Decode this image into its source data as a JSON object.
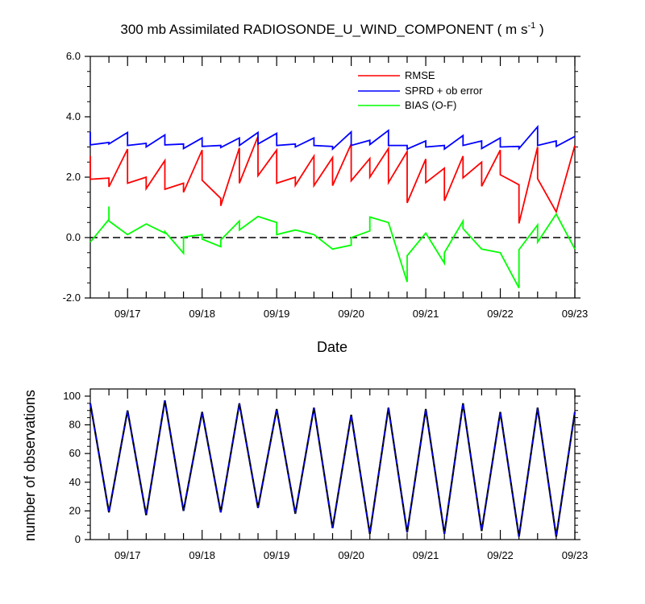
{
  "chart_data": [
    {
      "type": "line",
      "title": "300 mb Assimilated RADIOSONDE_U_WIND_COMPONENT ( m s",
      "title_unit_exp": "-1",
      "title_suffix": " )",
      "xlabel": "Date",
      "xticks": [
        "09/17",
        "09/18",
        "09/19",
        "09/20",
        "09/21",
        "09/22",
        "09/23"
      ],
      "xlim_hours": [
        -12,
        144
      ],
      "ylim": [
        -2,
        6
      ],
      "yticks": [
        "-2.0",
        "0.0",
        "2.0",
        "4.0",
        "6.0"
      ],
      "reference_line": {
        "y": 0,
        "style": "dashed",
        "color": "#000000"
      },
      "legend_position": "top-right",
      "series": [
        {
          "name": "RMSE",
          "color": "#ff0000",
          "points": [
            [
              -12,
              2.7
            ],
            [
              -12,
              1.93
            ],
            [
              -6,
              1.97
            ],
            [
              -6,
              1.68
            ],
            [
              0,
              2.93
            ],
            [
              0,
              1.8
            ],
            [
              6,
              2.0
            ],
            [
              6,
              1.62
            ],
            [
              12,
              2.55
            ],
            [
              12,
              1.6
            ],
            [
              18,
              1.8
            ],
            [
              18,
              1.5
            ],
            [
              24,
              2.9
            ],
            [
              24,
              1.9
            ],
            [
              30,
              1.3
            ],
            [
              30,
              1.05
            ],
            [
              36,
              2.97
            ],
            [
              36,
              1.8
            ],
            [
              42,
              3.35
            ],
            [
              42,
              2.05
            ],
            [
              48,
              2.9
            ],
            [
              48,
              1.8
            ],
            [
              54,
              2.0
            ],
            [
              54,
              1.73
            ],
            [
              60,
              2.7
            ],
            [
              60,
              1.72
            ],
            [
              66,
              2.65
            ],
            [
              66,
              1.72
            ],
            [
              72,
              3.1
            ],
            [
              72,
              1.88
            ],
            [
              78,
              2.62
            ],
            [
              78,
              2.0
            ],
            [
              84,
              2.95
            ],
            [
              84,
              1.82
            ],
            [
              90,
              2.85
            ],
            [
              90,
              1.15
            ],
            [
              96,
              2.6
            ],
            [
              96,
              1.82
            ],
            [
              102,
              2.3
            ],
            [
              102,
              1.22
            ],
            [
              108,
              2.7
            ],
            [
              108,
              1.98
            ],
            [
              114,
              2.5
            ],
            [
              114,
              1.7
            ],
            [
              120,
              2.9
            ],
            [
              120,
              2.08
            ],
            [
              126,
              1.75
            ],
            [
              126,
              0.47
            ],
            [
              132,
              3.0
            ],
            [
              132,
              1.95
            ],
            [
              138,
              0.85
            ],
            [
              144,
              3.05
            ]
          ]
        },
        {
          "name": "SPRD + ob error",
          "color": "#0000ff",
          "points": [
            [
              -12,
              3.5
            ],
            [
              -12,
              3.07
            ],
            [
              -6,
              3.15
            ],
            [
              -6,
              3.1
            ],
            [
              0,
              3.48
            ],
            [
              0,
              3.05
            ],
            [
              6,
              3.12
            ],
            [
              6,
              3.0
            ],
            [
              12,
              3.4
            ],
            [
              12,
              3.07
            ],
            [
              18,
              3.1
            ],
            [
              18,
              2.95
            ],
            [
              24,
              3.3
            ],
            [
              24,
              3.02
            ],
            [
              30,
              3.05
            ],
            [
              30,
              2.98
            ],
            [
              36,
              3.3
            ],
            [
              36,
              3.05
            ],
            [
              42,
              3.48
            ],
            [
              42,
              3.1
            ],
            [
              48,
              3.45
            ],
            [
              48,
              3.05
            ],
            [
              54,
              3.1
            ],
            [
              54,
              3.0
            ],
            [
              60,
              3.3
            ],
            [
              60,
              3.05
            ],
            [
              66,
              3.02
            ],
            [
              66,
              2.93
            ],
            [
              72,
              3.5
            ],
            [
              72,
              3.05
            ],
            [
              78,
              3.22
            ],
            [
              78,
              3.08
            ],
            [
              84,
              3.55
            ],
            [
              84,
              3.05
            ],
            [
              90,
              3.05
            ],
            [
              90,
              2.93
            ],
            [
              96,
              3.2
            ],
            [
              96,
              3.0
            ],
            [
              102,
              3.05
            ],
            [
              102,
              2.93
            ],
            [
              108,
              3.38
            ],
            [
              108,
              3.05
            ],
            [
              114,
              3.2
            ],
            [
              114,
              2.95
            ],
            [
              120,
              3.3
            ],
            [
              120,
              3.0
            ],
            [
              126,
              3.02
            ],
            [
              126,
              2.95
            ],
            [
              132,
              3.67
            ],
            [
              132,
              3.05
            ],
            [
              138,
              3.2
            ],
            [
              138,
              3.02
            ],
            [
              144,
              3.35
            ]
          ]
        },
        {
          "name": "BIAS (O-F)",
          "color": "#00ff00",
          "points": [
            [
              -12,
              -0.15
            ],
            [
              -6,
              0.6
            ],
            [
              -6,
              1.03
            ],
            [
              -6,
              0.55
            ],
            [
              0,
              0.1
            ],
            [
              6,
              0.45
            ],
            [
              12,
              0.15
            ],
            [
              12,
              0.2
            ],
            [
              18,
              -0.52
            ],
            [
              18,
              0.02
            ],
            [
              24,
              0.1
            ],
            [
              24,
              -0.05
            ],
            [
              30,
              -0.3
            ],
            [
              30,
              -0.08
            ],
            [
              36,
              0.55
            ],
            [
              36,
              0.25
            ],
            [
              42,
              0.7
            ],
            [
              48,
              0.5
            ],
            [
              48,
              0.1
            ],
            [
              54,
              0.25
            ],
            [
              60,
              0.1
            ],
            [
              66,
              -0.38
            ],
            [
              72,
              -0.25
            ],
            [
              72,
              0.0
            ],
            [
              78,
              0.22
            ],
            [
              78,
              0.68
            ],
            [
              84,
              0.5
            ],
            [
              90,
              -1.47
            ],
            [
              90,
              -0.6
            ],
            [
              96,
              0.15
            ],
            [
              102,
              -0.85
            ],
            [
              102,
              -0.5
            ],
            [
              108,
              0.55
            ],
            [
              108,
              0.3
            ],
            [
              114,
              -0.38
            ],
            [
              120,
              -0.5
            ],
            [
              126,
              -1.67
            ],
            [
              126,
              -0.4
            ],
            [
              132,
              0.42
            ],
            [
              132,
              -0.15
            ],
            [
              138,
              0.78
            ],
            [
              144,
              -0.38
            ]
          ]
        }
      ]
    },
    {
      "type": "line",
      "ylabel": "number of observations",
      "xticks": [
        "09/17",
        "09/18",
        "09/19",
        "09/20",
        "09/21",
        "09/22",
        "09/23"
      ],
      "xlim_hours": [
        -12,
        144
      ],
      "ylim": [
        0,
        105
      ],
      "yticks": [
        "0",
        "20",
        "40",
        "60",
        "80",
        "100"
      ],
      "series": [
        {
          "name": "",
          "color": "#000000",
          "points": [
            [
              -12,
              95
            ],
            [
              -6,
              19
            ],
            [
              0,
              90
            ],
            [
              6,
              17
            ],
            [
              12,
              97
            ],
            [
              18,
              20
            ],
            [
              24,
              89
            ],
            [
              30,
              19
            ],
            [
              36,
              95
            ],
            [
              42,
              22
            ],
            [
              48,
              91
            ],
            [
              54,
              18
            ],
            [
              60,
              92
            ],
            [
              66,
              8
            ],
            [
              72,
              87
            ],
            [
              78,
              4
            ],
            [
              84,
              92
            ],
            [
              90,
              5
            ],
            [
              96,
              91
            ],
            [
              102,
              4
            ],
            [
              108,
              95
            ],
            [
              114,
              6
            ],
            [
              120,
              89
            ],
            [
              126,
              2
            ],
            [
              132,
              92
            ],
            [
              138,
              2
            ],
            [
              144,
              89
            ]
          ]
        },
        {
          "name": "",
          "color": "#0000ff",
          "style": "dashed",
          "points": [
            [
              -12,
              95
            ],
            [
              -6,
              19
            ],
            [
              0,
              90
            ],
            [
              6,
              17
            ],
            [
              12,
              97
            ],
            [
              18,
              20
            ],
            [
              24,
              89
            ],
            [
              30,
              19
            ],
            [
              36,
              95
            ],
            [
              42,
              22
            ],
            [
              48,
              91
            ],
            [
              54,
              18
            ],
            [
              60,
              92
            ],
            [
              66,
              8
            ],
            [
              72,
              87
            ],
            [
              78,
              4
            ],
            [
              84,
              92
            ],
            [
              90,
              5
            ],
            [
              96,
              91
            ],
            [
              102,
              4
            ],
            [
              108,
              95
            ],
            [
              114,
              6
            ],
            [
              120,
              89
            ],
            [
              126,
              2
            ],
            [
              132,
              92
            ],
            [
              138,
              2
            ],
            [
              144,
              89
            ]
          ]
        }
      ]
    }
  ]
}
